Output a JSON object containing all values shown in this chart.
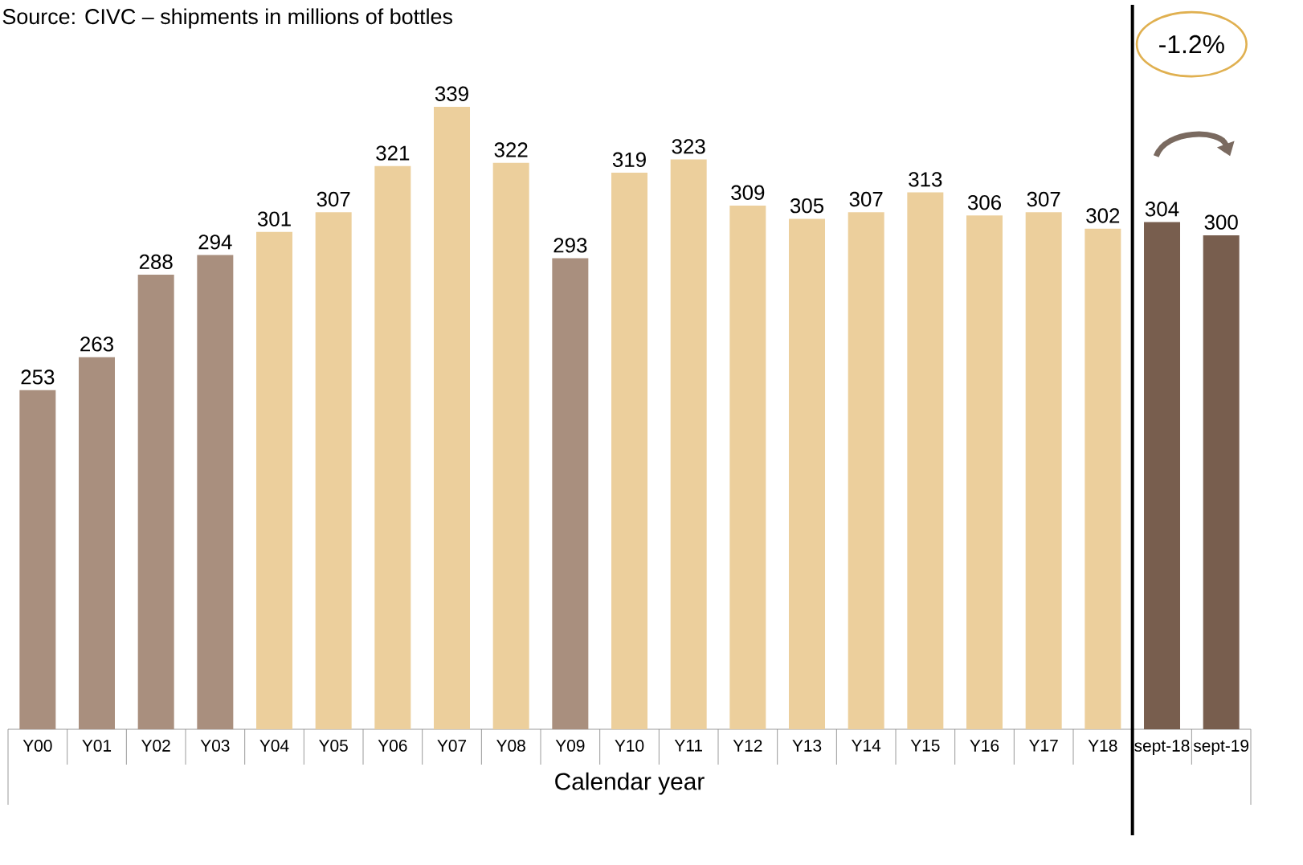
{
  "chart_data": {
    "type": "bar",
    "xlabel": "Calendar year",
    "categories": [
      "Y00",
      "Y01",
      "Y02",
      "Y03",
      "Y04",
      "Y05",
      "Y06",
      "Y07",
      "Y08",
      "Y09",
      "Y10",
      "Y11",
      "Y12",
      "Y13",
      "Y14",
      "Y15",
      "Y16",
      "Y17",
      "Y18",
      "sept-18",
      "sept-19"
    ],
    "values": [
      253,
      263,
      288,
      294,
      301,
      307,
      321,
      339,
      322,
      293,
      319,
      323,
      309,
      305,
      307,
      313,
      306,
      307,
      302,
      304,
      300
    ],
    "colors": [
      "#a98f7e",
      "#a98f7e",
      "#a98f7e",
      "#a98f7e",
      "#eccf9c",
      "#eccf9c",
      "#eccf9c",
      "#eccf9c",
      "#eccf9c",
      "#a98f7e",
      "#eccf9c",
      "#eccf9c",
      "#eccf9c",
      "#eccf9c",
      "#eccf9c",
      "#eccf9c",
      "#eccf9c",
      "#eccf9c",
      "#eccf9c",
      "#785e4e",
      "#785e4e"
    ],
    "ylim": [
      150,
      339
    ],
    "data_labels": true,
    "annotations": [
      "Source: CIVC – shipments in millions of bottles",
      "-1.2%"
    ]
  }
}
